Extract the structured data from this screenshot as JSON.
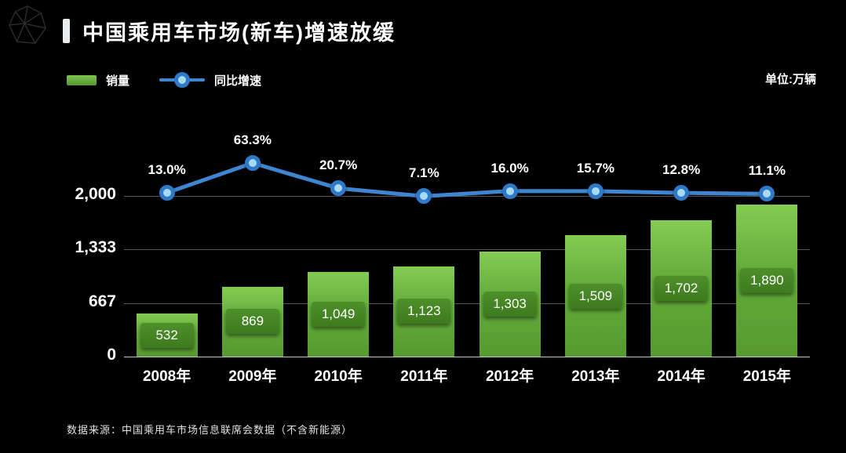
{
  "header": {
    "title": "中国乘用车市场(新车)增速放缓"
  },
  "legend": {
    "items": [
      {
        "label": "销量",
        "type": "bar",
        "color": "#63ab3a"
      },
      {
        "label": "同比增速",
        "type": "line",
        "color": "#3e86d1"
      }
    ]
  },
  "unit_label": "单位:万辆",
  "footer": {
    "source": "数据来源：中国乘用车市场信息联席会数据（不含新能源）"
  },
  "colors": {
    "background": "#000000",
    "bar_green": "#63ab3a",
    "bar_label_green": "#45851f",
    "line_blue": "#3e86d1",
    "point_fill": "#a8daf3",
    "text": "#ffffff"
  },
  "chart_data": {
    "type": "bar",
    "combo": "bar+line",
    "title": "中国乘用车市场(新车)增速放缓",
    "categories": [
      "2008年",
      "2009年",
      "2010年",
      "2011年",
      "2012年",
      "2013年",
      "2014年",
      "2015年"
    ],
    "series": [
      {
        "name": "销量",
        "type": "bar",
        "unit": "万辆",
        "values": [
          532,
          869,
          1049,
          1123,
          1303,
          1509,
          1702,
          1890
        ],
        "labels": [
          "532",
          "869",
          "1,049",
          "1,123",
          "1,303",
          "1,509",
          "1,702",
          "1,890"
        ],
        "color": "#63ab3a"
      },
      {
        "name": "同比增速",
        "type": "line",
        "unit": "%",
        "values": [
          13.0,
          63.3,
          20.7,
          7.1,
          16.0,
          15.7,
          12.8,
          11.1
        ],
        "labels": [
          "13.0%",
          "63.3%",
          "20.7%",
          "7.1%",
          "16.0%",
          "15.7%",
          "12.8%",
          "11.1%"
        ],
        "color": "#3e86d1"
      }
    ],
    "y_axis": {
      "min": 0,
      "max": 2000,
      "ticks": [
        {
          "label": "0",
          "value": 0
        },
        {
          "label": "667",
          "value": 666.67
        },
        {
          "label": "1,333",
          "value": 1333.33
        },
        {
          "label": "2,000",
          "value": 2000
        }
      ]
    },
    "grid": true,
    "legend_position": "top-left"
  }
}
